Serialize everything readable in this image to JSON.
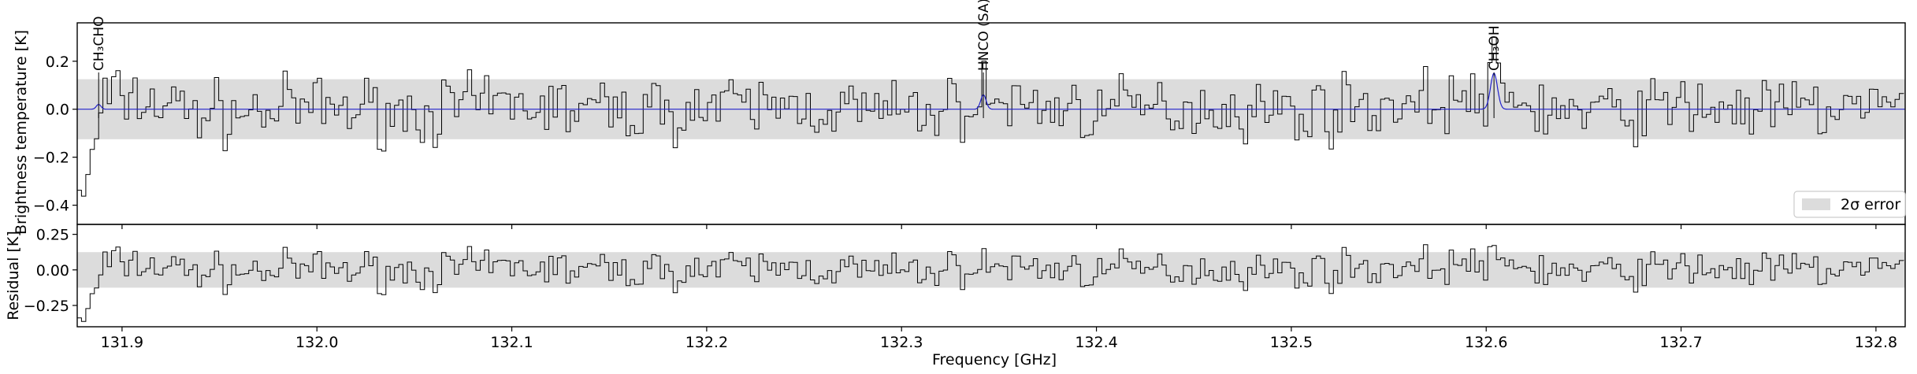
{
  "chart_data": {
    "type": "line",
    "x_axis": {
      "label": "Frequency [GHz]",
      "range": [
        131.877,
        132.815
      ],
      "ticks": [
        131.9,
        132.0,
        132.1,
        132.2,
        132.3,
        132.4,
        132.5,
        132.6,
        132.7,
        132.8
      ],
      "tick_labels": [
        "131.9",
        "132.0",
        "132.1",
        "132.2",
        "132.3",
        "132.4",
        "132.5",
        "132.6",
        "132.7",
        "132.8"
      ]
    },
    "panels": [
      {
        "name": "spectrum",
        "ylabel": "Brightness temperature [K]",
        "ylim": [
          -0.48,
          0.36
        ],
        "yticks": [
          0.2,
          0.0,
          -0.2,
          -0.4
        ],
        "ytick_labels": [
          "0.2",
          "0.0",
          "−0.2",
          "−0.4"
        ],
        "error_band": [
          -0.125,
          0.125
        ],
        "series": [
          {
            "role": "observed",
            "color": "#000000",
            "anchors_x": [
              131.877,
              131.88,
              131.885,
              131.89,
              131.9,
              131.92,
              131.95,
              132.0,
              132.05,
              132.1,
              132.15,
              132.2,
              132.25,
              132.3,
              132.35,
              132.4,
              132.45,
              132.5,
              132.55,
              132.6,
              132.65,
              132.7,
              132.75,
              132.8,
              132.815
            ],
            "anchors_y": [
              -0.3,
              -0.38,
              -0.15,
              0.05,
              0.12,
              0.04,
              -0.05,
              0.02,
              -0.03,
              0.05,
              -0.02,
              0.01,
              0.03,
              -0.04,
              0.06,
              -0.01,
              0.02,
              -0.02,
              0.04,
              0.1,
              -0.05,
              0.03,
              -0.01,
              0.02,
              0.0
            ],
            "noise_rms": 0.065,
            "noise_period_ghz": 0.0022
          },
          {
            "role": "model",
            "color": "#2222cc",
            "baseline": 0.0,
            "peaks": [
              {
                "center": 131.888,
                "amplitude": 0.02,
                "width": 0.0012
              },
              {
                "center": 132.342,
                "amplitude": 0.06,
                "width": 0.0014
              },
              {
                "center": 132.604,
                "amplitude": 0.15,
                "width": 0.0018
              }
            ]
          }
        ],
        "line_labels": [
          {
            "x": 131.888,
            "text": "CH₃CHO"
          },
          {
            "x": 132.342,
            "text": "HNCO (SA)"
          },
          {
            "x": 132.604,
            "text": "CH₃OH"
          }
        ],
        "legend": {
          "position": "lower-right",
          "label": "2σ error",
          "swatch_color": "#dcdcdc"
        }
      },
      {
        "name": "residual",
        "ylabel": "Residual [K]",
        "ylim": [
          -0.4,
          0.32
        ],
        "yticks": [
          0.25,
          0.0,
          -0.25
        ],
        "ytick_labels": [
          "0.25",
          "0.00",
          "−0.25"
        ],
        "error_band": [
          -0.125,
          0.125
        ]
      }
    ],
    "colors": {
      "band": "#dcdcdc",
      "observed": "#000000",
      "model": "#2222cc"
    }
  }
}
